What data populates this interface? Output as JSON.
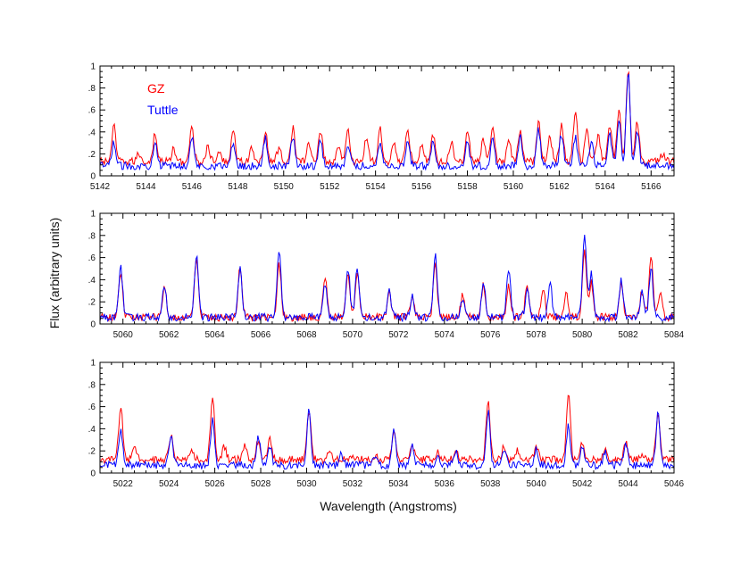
{
  "xlabel": "Wavelength (Angstroms)",
  "ylabel": "Flux (arbitrary units)",
  "colors": {
    "GZ": "#ff0000",
    "Tuttle": "#0000ff"
  },
  "chart_data": [
    {
      "type": "line",
      "xlim": [
        5142,
        5167
      ],
      "ylim": [
        0,
        1
      ],
      "xticks": [
        5142,
        5144,
        5146,
        5148,
        5150,
        5152,
        5154,
        5156,
        5158,
        5160,
        5162,
        5164,
        5166
      ],
      "yticks": [
        0,
        0.2,
        0.4,
        0.6,
        0.8,
        1
      ],
      "ytick_labels": [
        "0",
        ".2",
        ".4",
        ".6",
        ".8",
        "1"
      ],
      "legend": [
        {
          "name": "GZ",
          "color": "#ff0000"
        },
        {
          "name": "Tuttle",
          "color": "#0000ff"
        }
      ],
      "series": [
        {
          "name": "GZ",
          "color": "#ff0000",
          "baseline": 0.13,
          "peaks": [
            [
              5142.6,
              0.45
            ],
            [
              5143.7,
              0.2
            ],
            [
              5144.4,
              0.39
            ],
            [
              5145.2,
              0.24
            ],
            [
              5146.0,
              0.43
            ],
            [
              5146.7,
              0.26
            ],
            [
              5147.2,
              0.2
            ],
            [
              5147.8,
              0.43
            ],
            [
              5148.6,
              0.24
            ],
            [
              5149.2,
              0.4
            ],
            [
              5149.8,
              0.26
            ],
            [
              5150.4,
              0.44
            ],
            [
              5151.1,
              0.3
            ],
            [
              5151.6,
              0.42
            ],
            [
              5152.4,
              0.28
            ],
            [
              5152.8,
              0.4
            ],
            [
              5153.6,
              0.34
            ],
            [
              5154.2,
              0.42
            ],
            [
              5154.8,
              0.3
            ],
            [
              5155.4,
              0.42
            ],
            [
              5156.0,
              0.3
            ],
            [
              5156.5,
              0.38
            ],
            [
              5157.3,
              0.32
            ],
            [
              5158.0,
              0.43
            ],
            [
              5158.7,
              0.33
            ],
            [
              5159.1,
              0.42
            ],
            [
              5159.8,
              0.34
            ],
            [
              5160.3,
              0.42
            ],
            [
              5161.1,
              0.5
            ],
            [
              5161.6,
              0.35
            ],
            [
              5162.1,
              0.46
            ],
            [
              5162.7,
              0.6
            ],
            [
              5163.2,
              0.44
            ],
            [
              5163.7,
              0.38
            ],
            [
              5164.2,
              0.46
            ],
            [
              5164.6,
              0.6
            ],
            [
              5165.0,
              0.96
            ],
            [
              5165.4,
              0.5
            ],
            [
              5166.5,
              0.2
            ]
          ]
        },
        {
          "name": "Tuttle",
          "color": "#0000ff",
          "baseline": 0.09,
          "peaks": [
            [
              5142.6,
              0.3
            ],
            [
              5144.4,
              0.33
            ],
            [
              5146.0,
              0.35
            ],
            [
              5147.8,
              0.3
            ],
            [
              5149.2,
              0.34
            ],
            [
              5150.4,
              0.36
            ],
            [
              5151.6,
              0.33
            ],
            [
              5152.8,
              0.3
            ],
            [
              5154.2,
              0.32
            ],
            [
              5155.4,
              0.32
            ],
            [
              5156.5,
              0.3
            ],
            [
              5158.0,
              0.33
            ],
            [
              5159.1,
              0.32
            ],
            [
              5160.3,
              0.35
            ],
            [
              5161.1,
              0.42
            ],
            [
              5162.1,
              0.38
            ],
            [
              5162.7,
              0.35
            ],
            [
              5163.4,
              0.3
            ],
            [
              5164.2,
              0.38
            ],
            [
              5164.6,
              0.5
            ],
            [
              5165.0,
              0.95
            ],
            [
              5165.4,
              0.4
            ]
          ]
        }
      ]
    },
    {
      "type": "line",
      "xlim": [
        5059,
        5084
      ],
      "ylim": [
        0,
        1
      ],
      "xticks": [
        5060,
        5062,
        5064,
        5066,
        5068,
        5070,
        5072,
        5074,
        5076,
        5078,
        5080,
        5082,
        5084
      ],
      "yticks": [
        0,
        0.2,
        0.4,
        0.6,
        0.8,
        1
      ],
      "ytick_labels": [
        "0",
        ".2",
        ".4",
        ".6",
        ".8",
        "1"
      ],
      "series": [
        {
          "name": "GZ",
          "color": "#ff0000",
          "baseline": 0.06,
          "peaks": [
            [
              5059.9,
              0.45
            ],
            [
              5061.8,
              0.34
            ],
            [
              5063.2,
              0.59
            ],
            [
              5065.1,
              0.52
            ],
            [
              5066.8,
              0.54
            ],
            [
              5068.8,
              0.43
            ],
            [
              5069.8,
              0.48
            ],
            [
              5070.2,
              0.47
            ],
            [
              5071.6,
              0.29
            ],
            [
              5072.6,
              0.26
            ],
            [
              5073.6,
              0.53
            ],
            [
              5074.8,
              0.26
            ],
            [
              5075.7,
              0.35
            ],
            [
              5076.8,
              0.34
            ],
            [
              5077.6,
              0.34
            ],
            [
              5078.3,
              0.34
            ],
            [
              5079.3,
              0.3
            ],
            [
              5080.1,
              0.67
            ],
            [
              5080.4,
              0.37
            ],
            [
              5081.7,
              0.38
            ],
            [
              5082.6,
              0.3
            ],
            [
              5083.0,
              0.64
            ],
            [
              5083.4,
              0.27
            ]
          ]
        },
        {
          "name": "Tuttle",
          "color": "#0000ff",
          "baseline": 0.06,
          "peaks": [
            [
              5059.9,
              0.52
            ],
            [
              5061.8,
              0.36
            ],
            [
              5063.2,
              0.61
            ],
            [
              5065.1,
              0.51
            ],
            [
              5066.8,
              0.67
            ],
            [
              5068.8,
              0.34
            ],
            [
              5069.8,
              0.5
            ],
            [
              5070.2,
              0.51
            ],
            [
              5071.6,
              0.3
            ],
            [
              5072.6,
              0.25
            ],
            [
              5073.6,
              0.62
            ],
            [
              5074.8,
              0.22
            ],
            [
              5075.7,
              0.38
            ],
            [
              5076.8,
              0.5
            ],
            [
              5077.6,
              0.3
            ],
            [
              5078.6,
              0.37
            ],
            [
              5080.1,
              0.81
            ],
            [
              5080.4,
              0.45
            ],
            [
              5081.7,
              0.4
            ],
            [
              5082.6,
              0.28
            ],
            [
              5083.0,
              0.5
            ]
          ]
        }
      ]
    },
    {
      "type": "line",
      "xlim": [
        5021,
        5046
      ],
      "ylim": [
        0,
        1
      ],
      "xticks": [
        5022,
        5024,
        5026,
        5028,
        5030,
        5032,
        5034,
        5036,
        5038,
        5040,
        5042,
        5044,
        5046
      ],
      "yticks": [
        0,
        0.2,
        0.4,
        0.6,
        0.8,
        1
      ],
      "ytick_labels": [
        "0",
        ".2",
        ".4",
        ".6",
        ".8",
        "1"
      ],
      "series": [
        {
          "name": "GZ",
          "color": "#ff0000",
          "baseline": 0.12,
          "peaks": [
            [
              5021.9,
              0.61
            ],
            [
              5022.5,
              0.25
            ],
            [
              5024.1,
              0.34
            ],
            [
              5025.0,
              0.2
            ],
            [
              5025.9,
              0.69
            ],
            [
              5026.4,
              0.24
            ],
            [
              5027.3,
              0.24
            ],
            [
              5027.9,
              0.3
            ],
            [
              5028.4,
              0.3
            ],
            [
              5030.1,
              0.57
            ],
            [
              5031.0,
              0.22
            ],
            [
              5032.0,
              0.15
            ],
            [
              5033.0,
              0.16
            ],
            [
              5033.8,
              0.37
            ],
            [
              5034.6,
              0.26
            ],
            [
              5035.7,
              0.18
            ],
            [
              5036.5,
              0.22
            ],
            [
              5037.9,
              0.66
            ],
            [
              5038.6,
              0.24
            ],
            [
              5039.2,
              0.2
            ],
            [
              5040.0,
              0.24
            ],
            [
              5041.4,
              0.73
            ],
            [
              5042.0,
              0.26
            ],
            [
              5043.0,
              0.22
            ],
            [
              5043.9,
              0.28
            ],
            [
              5044.6,
              0.18
            ],
            [
              5045.3,
              0.52
            ]
          ]
        },
        {
          "name": "Tuttle",
          "color": "#0000ff",
          "baseline": 0.07,
          "peaks": [
            [
              5021.9,
              0.4
            ],
            [
              5024.1,
              0.35
            ],
            [
              5025.9,
              0.47
            ],
            [
              5027.9,
              0.32
            ],
            [
              5028.4,
              0.25
            ],
            [
              5030.1,
              0.57
            ],
            [
              5031.5,
              0.16
            ],
            [
              5033.0,
              0.15
            ],
            [
              5033.8,
              0.4
            ],
            [
              5034.6,
              0.25
            ],
            [
              5035.7,
              0.16
            ],
            [
              5036.5,
              0.2
            ],
            [
              5037.9,
              0.56
            ],
            [
              5038.6,
              0.22
            ],
            [
              5040.0,
              0.22
            ],
            [
              5041.4,
              0.42
            ],
            [
              5042.0,
              0.24
            ],
            [
              5043.0,
              0.2
            ],
            [
              5043.9,
              0.26
            ],
            [
              5045.3,
              0.54
            ]
          ]
        }
      ]
    }
  ]
}
